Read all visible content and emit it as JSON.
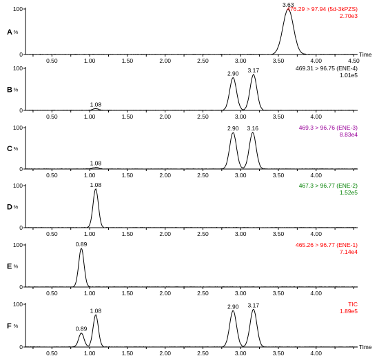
{
  "chart_data": [
    {
      "type": "line",
      "panel": "A",
      "x_range": [
        0.15,
        4.55
      ],
      "ylim": [
        0,
        100
      ],
      "x_ticks": [
        "0.50",
        "1.00",
        "1.50",
        "2.00",
        "2.50",
        "3.00",
        "3.50",
        "4.00",
        "4.50"
      ],
      "y_ticks": [
        "100",
        "0"
      ],
      "ylabel": "%",
      "xlabel": "Time",
      "annotation": [
        "476.29 > 97.94 (5d-3kPZS)",
        "2.70e3"
      ],
      "annotation_color": "#ff0000",
      "peaks": [
        {
          "x": 3.63,
          "y": 100,
          "width": 0.07,
          "label": "3.63"
        }
      ]
    },
    {
      "type": "line",
      "panel": "B",
      "x_range": [
        0.15,
        4.55
      ],
      "ylim": [
        0,
        100
      ],
      "x_ticks": [
        "0.50",
        "1.00",
        "1.50",
        "2.00",
        "2.50",
        "3.00",
        "3.50",
        "4.00"
      ],
      "y_ticks": [
        "100",
        "0"
      ],
      "ylabel": "%",
      "annotation": [
        "469.31 > 96.75 (ENE-4)",
        "1.01e5"
      ],
      "annotation_color": "#000000",
      "peaks": [
        {
          "x": 1.08,
          "y": 4,
          "width": 0.04,
          "label": "1.08"
        },
        {
          "x": 2.9,
          "y": 78,
          "width": 0.045,
          "label": "2.90"
        },
        {
          "x": 3.17,
          "y": 85,
          "width": 0.045,
          "label": "3.17"
        }
      ]
    },
    {
      "type": "line",
      "panel": "C",
      "x_range": [
        0.15,
        4.55
      ],
      "ylim": [
        0,
        100
      ],
      "x_ticks": [
        "0.50",
        "1.00",
        "1.50",
        "2.00",
        "2.50",
        "3.00",
        "3.50",
        "4.00"
      ],
      "y_ticks": [
        "100",
        "0"
      ],
      "ylabel": "%",
      "annotation": [
        "469.3 > 96.76 (ENE-3)",
        "8.83e4"
      ],
      "annotation_color": "#990099",
      "peaks": [
        {
          "x": 1.08,
          "y": 4,
          "width": 0.04,
          "label": "1.08"
        },
        {
          "x": 2.9,
          "y": 88,
          "width": 0.045,
          "label": "2.90"
        },
        {
          "x": 3.16,
          "y": 88,
          "width": 0.045,
          "label": "3.16"
        }
      ]
    },
    {
      "type": "line",
      "panel": "D",
      "x_range": [
        0.15,
        4.55
      ],
      "ylim": [
        0,
        100
      ],
      "x_ticks": [
        "0.50",
        "1.00",
        "1.50",
        "2.00",
        "2.50",
        "3.00",
        "3.50",
        "4.00"
      ],
      "y_ticks": [
        "100",
        "0"
      ],
      "ylabel": "%",
      "annotation": [
        "467.3 > 96.77 (ENE-2)",
        "1.52e5"
      ],
      "annotation_color": "#008000",
      "peaks": [
        {
          "x": 1.08,
          "y": 92,
          "width": 0.035,
          "label": "1.08"
        }
      ]
    },
    {
      "type": "line",
      "panel": "E",
      "x_range": [
        0.15,
        4.55
      ],
      "ylim": [
        0,
        100
      ],
      "x_ticks": [
        "0.50",
        "1.00",
        "1.50",
        "2.00",
        "2.50",
        "3.00",
        "3.50",
        "4.00"
      ],
      "y_ticks": [
        "100",
        "0"
      ],
      "ylabel": "%",
      "annotation": [
        "465.26 > 96.77 (ENE-1)",
        "7.14e4"
      ],
      "annotation_color": "#ff0000",
      "peaks": [
        {
          "x": 0.89,
          "y": 92,
          "width": 0.035,
          "label": "0.89"
        }
      ]
    },
    {
      "type": "line",
      "panel": "F",
      "x_range": [
        0.15,
        4.55
      ],
      "ylim": [
        0,
        100
      ],
      "x_ticks": [
        "0.50",
        "1.00",
        "1.50",
        "2.00",
        "2.50",
        "3.00",
        "3.50",
        "4.00"
      ],
      "y_ticks": [
        "100",
        "0"
      ],
      "ylabel": "%",
      "xlabel": "Time",
      "annotation": [
        "TIC",
        "1.89e5"
      ],
      "annotation_color": "#ff0000",
      "peaks": [
        {
          "x": 0.89,
          "y": 33,
          "width": 0.035,
          "label": "0.89"
        },
        {
          "x": 1.08,
          "y": 75,
          "width": 0.035,
          "label": "1.08"
        },
        {
          "x": 2.9,
          "y": 85,
          "width": 0.045,
          "label": "2.90"
        },
        {
          "x": 3.17,
          "y": 88,
          "width": 0.045,
          "label": "3.17"
        }
      ]
    }
  ]
}
